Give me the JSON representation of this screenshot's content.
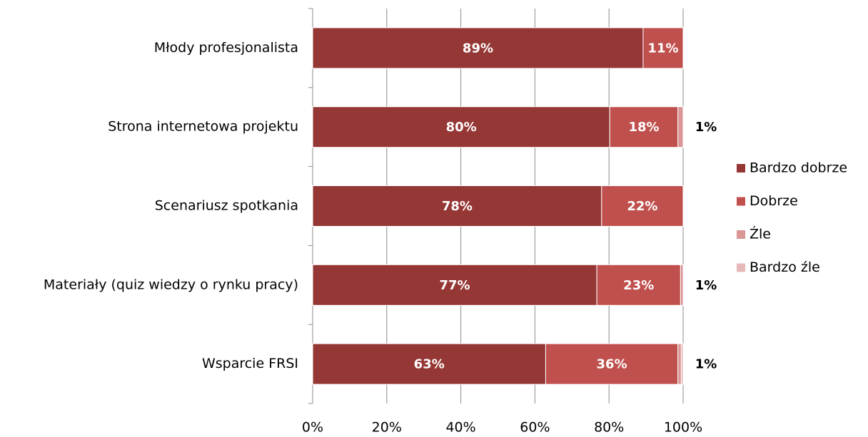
{
  "chart_data": {
    "type": "stacked_barh",
    "categories": [
      "Młody profesjonalista",
      "Strona internetowa projektu",
      "Scenariusz spotkania",
      "Materiały (quiz wiedzy o rynku pracy)",
      "Wsparcie FRSI"
    ],
    "series": [
      {
        "name": "Bardzo dobrze",
        "color": "#953735",
        "values": [
          89.2,
          80.2,
          78.0,
          76.7,
          62.9
        ],
        "value_labels": [
          "89%",
          "80%",
          "78%",
          "77%",
          "63%"
        ]
      },
      {
        "name": "Dobrze",
        "color": "#c0504d",
        "values": [
          10.8,
          18.4,
          22.0,
          22.6,
          35.7
        ],
        "value_labels": [
          "11%",
          "18%",
          "22%",
          "23%",
          "36%"
        ]
      },
      {
        "name": "Źle",
        "color": "#d99694",
        "values": [
          0,
          1.4,
          0,
          0.7,
          0.9
        ],
        "value_labels": [
          null,
          "1%",
          null,
          "1%",
          "1%"
        ]
      },
      {
        "name": "Bardzo źle",
        "color": "#e6b9b8",
        "values": [
          0,
          0,
          0,
          0,
          0.5
        ],
        "value_labels": [
          null,
          null,
          null,
          null,
          null
        ]
      }
    ],
    "xlim": [
      0,
      100
    ],
    "xticks": [
      {
        "value": 0,
        "label": "0%"
      },
      {
        "value": 20,
        "label": "20%"
      },
      {
        "value": 40,
        "label": "40%"
      },
      {
        "value": 60,
        "label": "60%"
      },
      {
        "value": 80,
        "label": "80%"
      },
      {
        "value": 100,
        "label": "100%"
      }
    ],
    "grid": true,
    "legend": "right"
  }
}
